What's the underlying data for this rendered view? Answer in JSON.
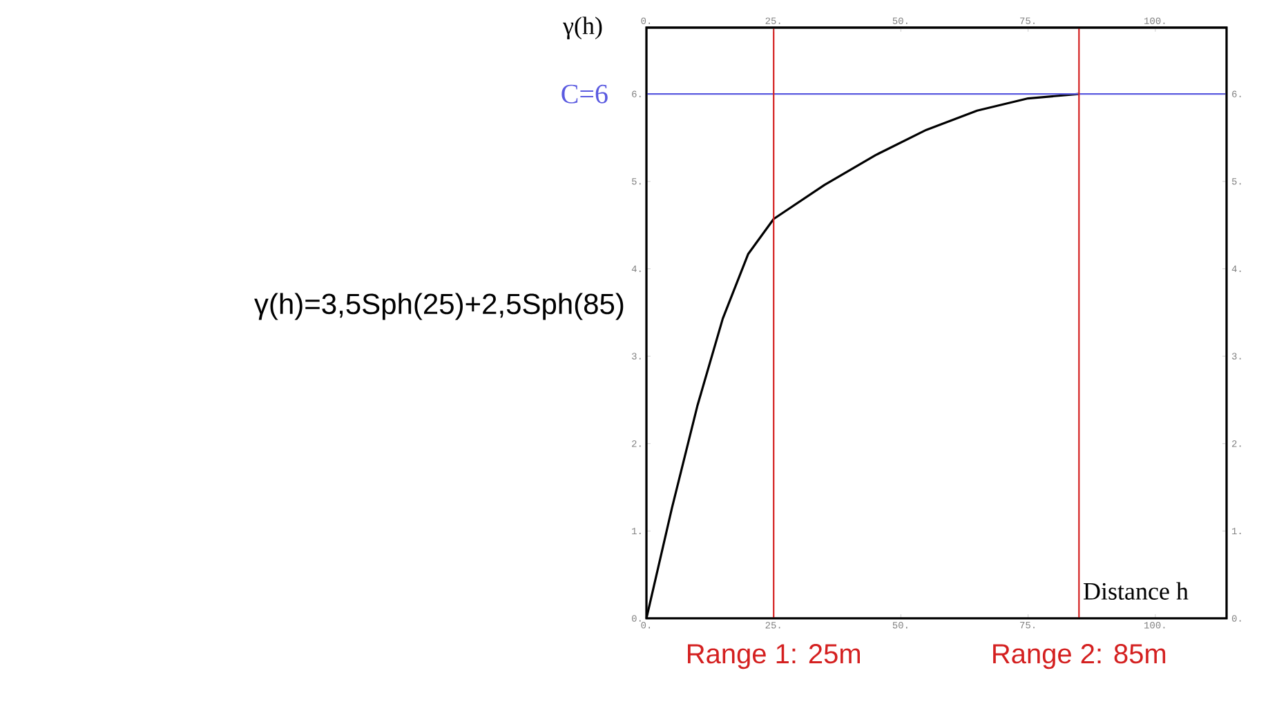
{
  "chart_data": {
    "type": "line",
    "xlabel": "Distance h",
    "ylabel": "γ(h)",
    "x": [
      0,
      5,
      10,
      15,
      20,
      25,
      35,
      45,
      55,
      65,
      75,
      85
    ],
    "series": [
      {
        "color": "#000000",
        "values": [
          0,
          1.26,
          2.43,
          3.43,
          4.17,
          4.57,
          4.96,
          5.3,
          5.59,
          5.81,
          5.95,
          6
        ]
      }
    ],
    "xlim": [
      0,
      114
    ],
    "ylim": [
      0,
      6.76
    ],
    "xticks": [
      {
        "value": 0,
        "label": "0."
      },
      {
        "value": 25,
        "label": "25."
      },
      {
        "value": 50,
        "label": "50."
      },
      {
        "value": 75,
        "label": "75."
      },
      {
        "value": 100,
        "label": "100."
      }
    ],
    "yticks": [
      {
        "value": 0,
        "label": "0."
      },
      {
        "value": 1,
        "label": "1."
      },
      {
        "value": 2,
        "label": "2."
      },
      {
        "value": 3,
        "label": "3."
      },
      {
        "value": 4,
        "label": "4."
      },
      {
        "value": 5,
        "label": "5."
      },
      {
        "value": 6,
        "label": "6."
      }
    ],
    "x2lim": [
      0,
      114
    ],
    "y2lim": [
      0,
      6.76
    ],
    "x2ticks": [
      {
        "value": 0,
        "label": "0."
      },
      {
        "value": 25,
        "label": "25."
      },
      {
        "value": 50,
        "label": "50."
      },
      {
        "value": 75,
        "label": "75."
      },
      {
        "value": 100,
        "label": "100."
      }
    ],
    "y2ticks": [
      {
        "value": 0,
        "label": "0."
      },
      {
        "value": 1,
        "label": "1."
      },
      {
        "value": 2,
        "label": "2."
      },
      {
        "value": 3,
        "label": "3."
      },
      {
        "value": 4,
        "label": "4."
      },
      {
        "value": 5,
        "label": "5."
      },
      {
        "value": 6,
        "label": "6."
      }
    ],
    "ref_lines": [
      {
        "axis": "y",
        "value": 6,
        "label": "C=6",
        "color": "#5a5ae0"
      },
      {
        "axis": "x",
        "value": 25,
        "label": "Range 1: 25m",
        "color": "#d42020"
      },
      {
        "axis": "x",
        "value": 85,
        "label": "Range 2: 85m",
        "color": "#d42020"
      }
    ],
    "annotations": [
      "γ(h)=3,5Sph(25)+2,5Sph(85)"
    ]
  }
}
